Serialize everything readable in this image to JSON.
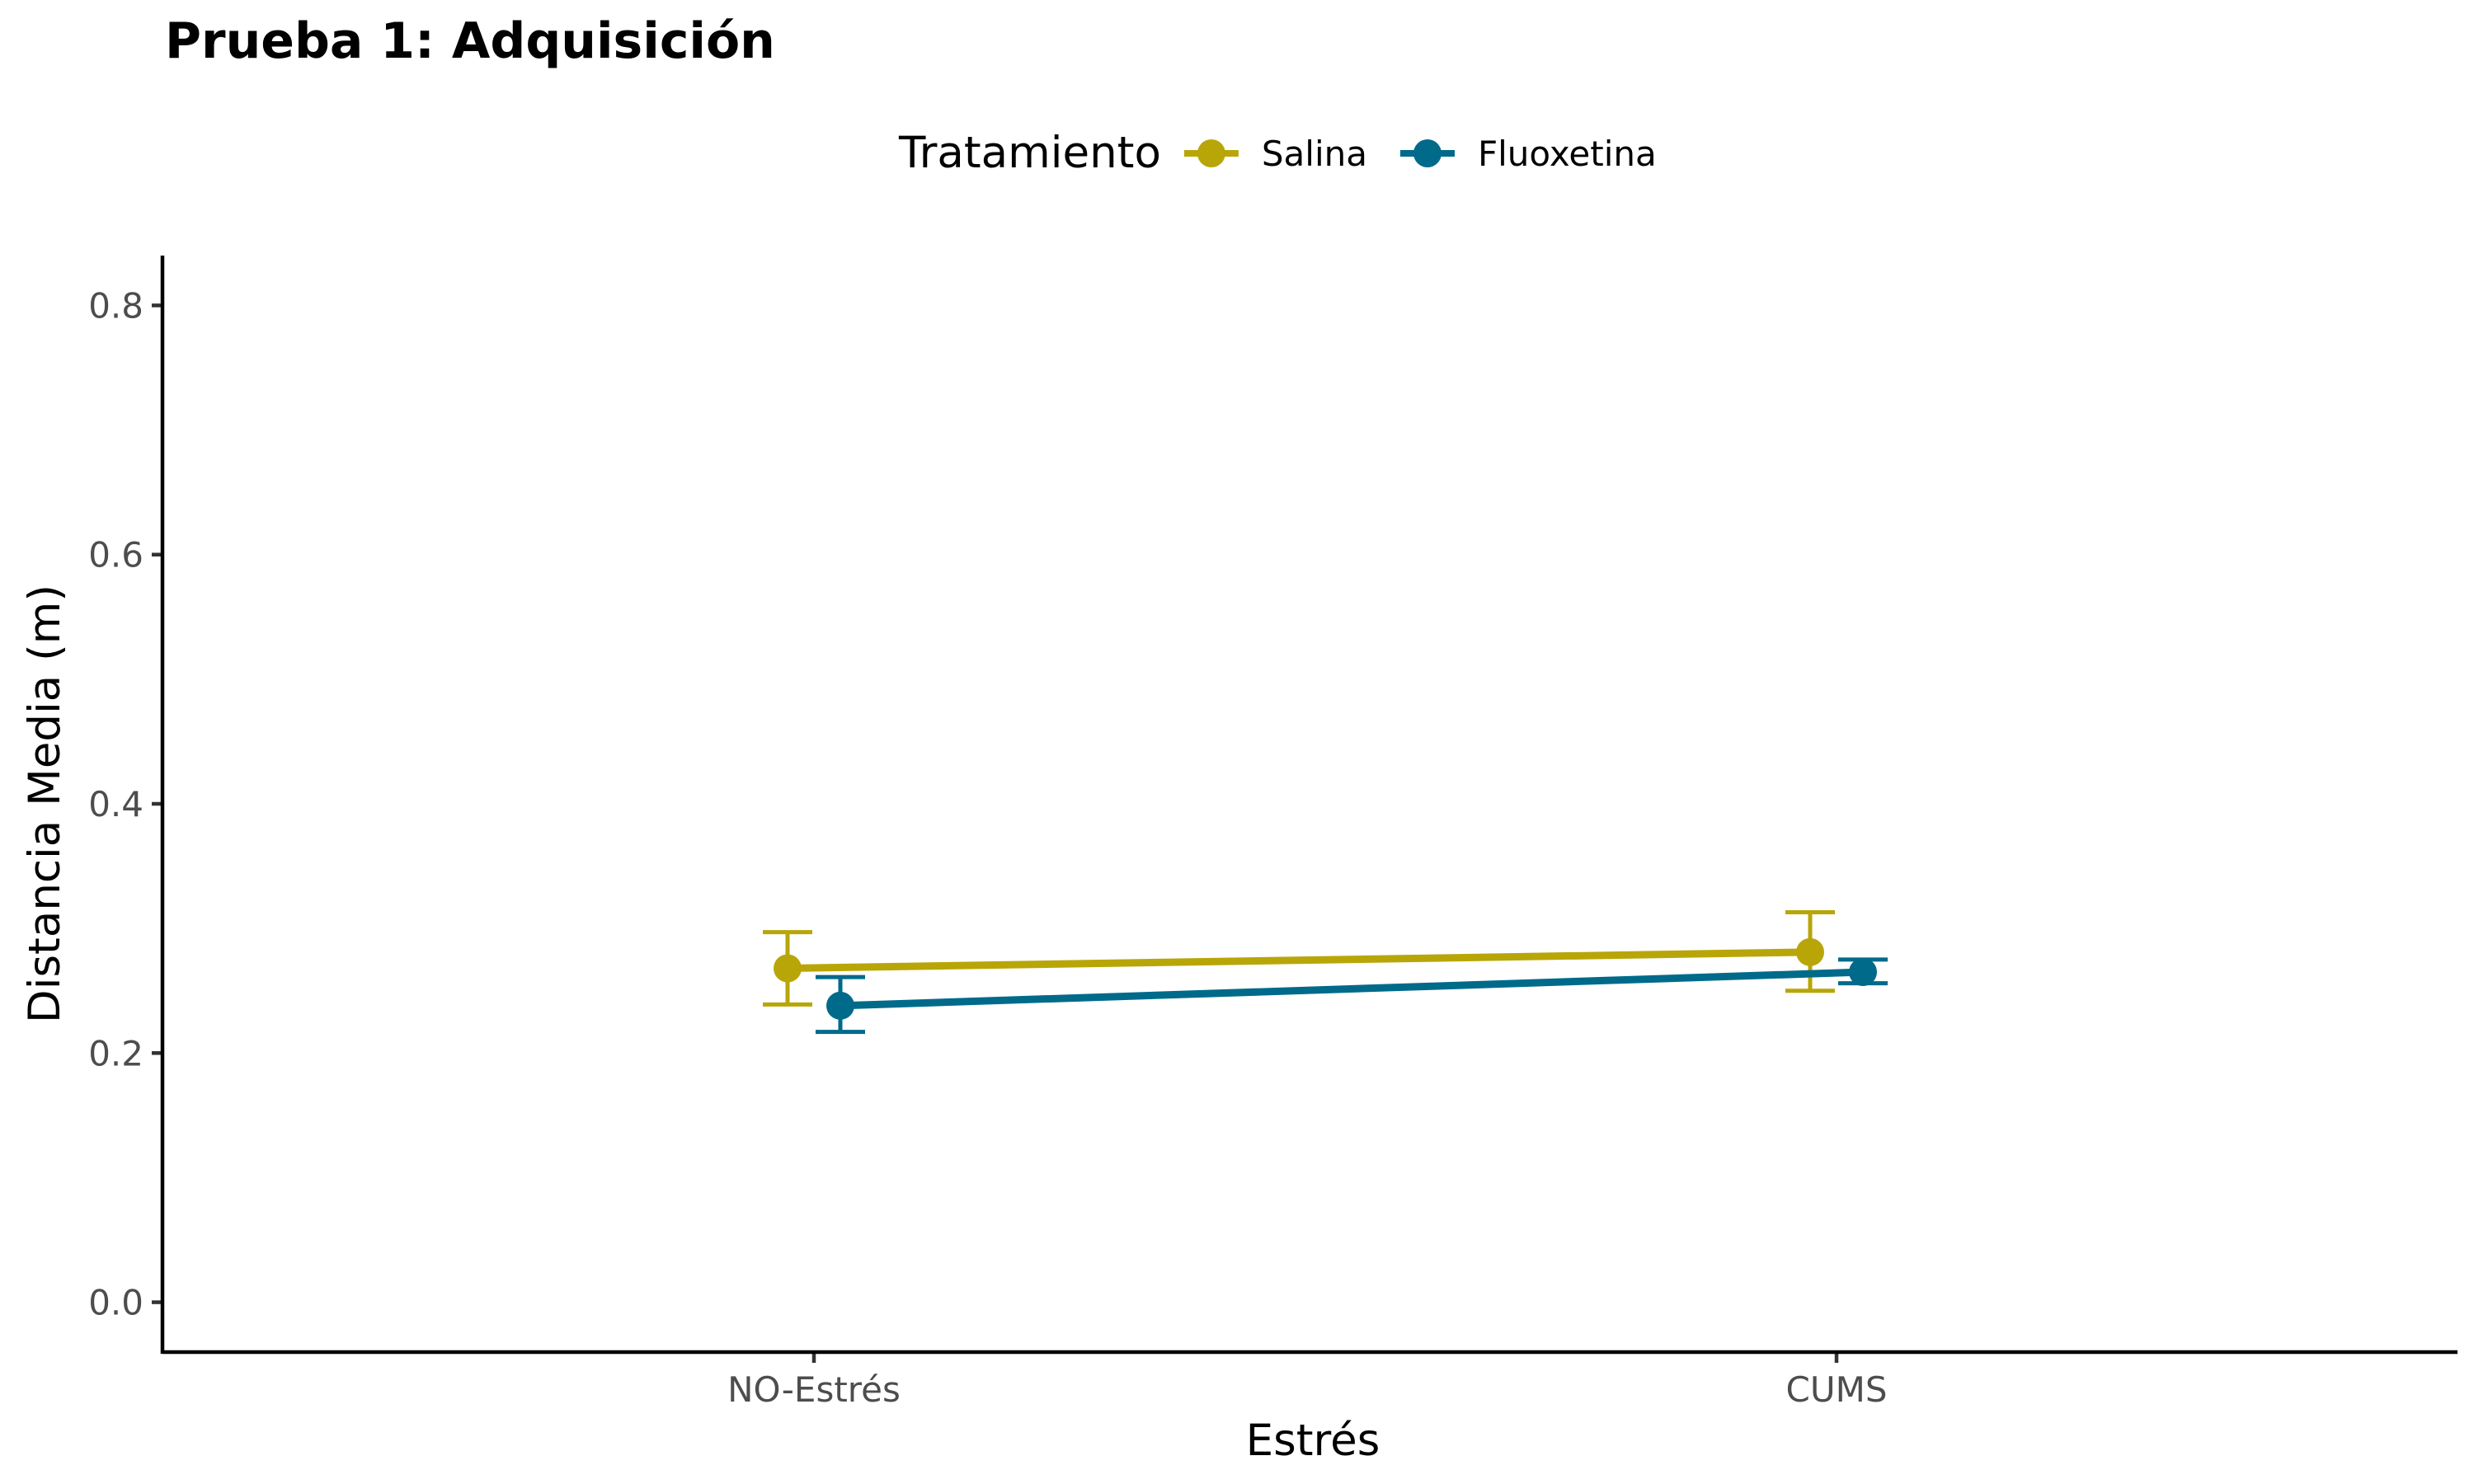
{
  "chart_data": {
    "type": "line",
    "title": "Prueba 1: Adquisición",
    "xlabel": "Estrés",
    "ylabel": "Distancia Media (m)",
    "categories": [
      "NO-Estrés",
      "CUMS"
    ],
    "ylim": [
      -0.04,
      0.84
    ],
    "yticks": [
      0.0,
      0.2,
      0.4,
      0.6,
      0.8
    ],
    "ytick_labels": [
      "0.0",
      "0.2",
      "0.4",
      "0.6",
      "0.8"
    ],
    "grid": false,
    "legend": {
      "title": "Tratamiento",
      "position": "top"
    },
    "series": [
      {
        "name": "Salina",
        "color": "#B8A609",
        "values": [
          0.268,
          0.281
        ],
        "error_low": [
          0.239,
          0.25
        ],
        "error_high": [
          0.297,
          0.313
        ]
      },
      {
        "name": "Fluoxetina",
        "color": "#006A8A",
        "values": [
          0.238,
          0.265
        ],
        "error_low": [
          0.217,
          0.256
        ],
        "error_high": [
          0.261,
          0.275
        ]
      }
    ]
  }
}
